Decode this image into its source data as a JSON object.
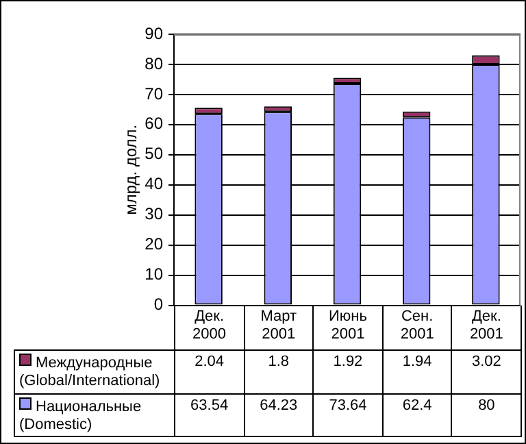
{
  "chart_data": {
    "type": "bar",
    "stacked": true,
    "ylabel": "млрд. долл.",
    "categories": [
      "Дек. 2000",
      "Март 2001",
      "Июнь 2001",
      "Сен. 2001",
      "Дек. 2001"
    ],
    "series": [
      {
        "name": "Национальные (Domestic)",
        "color": "#9999ff",
        "values": [
          63.54,
          64.23,
          73.64,
          62.4,
          80
        ]
      },
      {
        "name": "Международные (Global/International)",
        "color": "#993366",
        "values": [
          2.04,
          1.8,
          1.92,
          1.94,
          3.02
        ]
      }
    ],
    "ylim": [
      0,
      90
    ],
    "yticks": [
      0,
      10,
      20,
      30,
      40,
      50,
      60,
      70,
      80,
      90
    ],
    "grid": "y",
    "legend": "bottom",
    "data_labels": true
  }
}
